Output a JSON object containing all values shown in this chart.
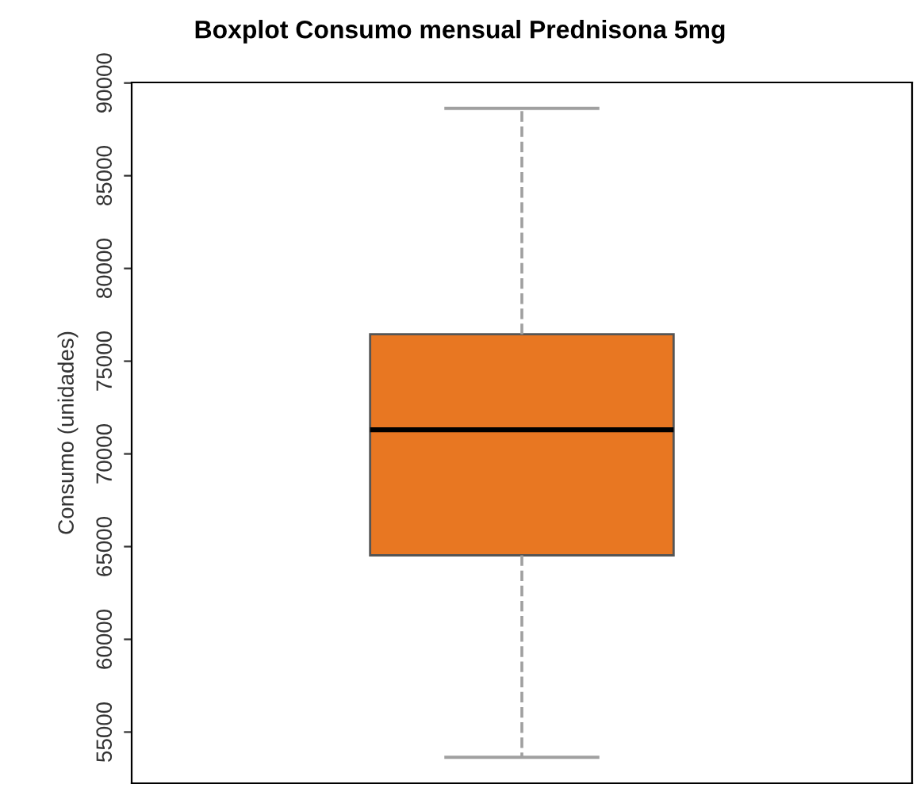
{
  "chart_data": {
    "type": "box",
    "title": "Boxplot Consumo mensual Prednisona 5mg",
    "ylabel": "Consumo (unidades)",
    "categories": [
      null
    ],
    "series": [
      {
        "color": "#e87722",
        "boxes": [
          {
            "low": 53640,
            "q1": 64530,
            "median": 71300,
            "q3": 76450,
            "high": 88630
          }
        ]
      }
    ],
    "ylim": [
      52240,
      90030
    ],
    "yticks": [
      55000,
      60000,
      65000,
      70000,
      75000,
      80000,
      85000,
      90000
    ],
    "grid": false,
    "tick_labels": "y"
  }
}
